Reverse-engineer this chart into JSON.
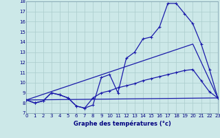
{
  "title": "Graphe des températures (°c)",
  "bg_color": "#cce8e8",
  "grid_color": "#aacccc",
  "line_color": "#1a1aaa",
  "x_min": 0,
  "x_max": 23,
  "y_min": 7,
  "y_max": 18,
  "series1_x": [
    0,
    1,
    2,
    3,
    4,
    5,
    6,
    7,
    8,
    9,
    10,
    11,
    12,
    13,
    14,
    15,
    16,
    17,
    18,
    19,
    20,
    21,
    22,
    23
  ],
  "series1_y": [
    8.3,
    8.0,
    8.2,
    9.0,
    8.8,
    8.5,
    7.7,
    7.5,
    7.8,
    10.5,
    10.8,
    9.0,
    12.4,
    13.0,
    14.3,
    14.5,
    15.5,
    17.8,
    17.8,
    16.8,
    15.8,
    13.8,
    11.3,
    8.5
  ],
  "series2_x": [
    0,
    1,
    2,
    3,
    4,
    5,
    6,
    7,
    8,
    9,
    10,
    11,
    12,
    13,
    14,
    15,
    16,
    17,
    18,
    19,
    20,
    21,
    22,
    23
  ],
  "series2_y": [
    8.3,
    8.0,
    8.2,
    9.0,
    8.8,
    8.5,
    7.7,
    7.5,
    8.5,
    9.0,
    9.2,
    9.5,
    9.7,
    9.9,
    10.2,
    10.4,
    10.6,
    10.8,
    11.0,
    11.2,
    11.3,
    10.2,
    9.1,
    8.5
  ],
  "series3_x": [
    0,
    23
  ],
  "series3_y": [
    8.3,
    8.5
  ],
  "series4_x": [
    0,
    20,
    23
  ],
  "series4_y": [
    8.3,
    13.8,
    8.5
  ]
}
